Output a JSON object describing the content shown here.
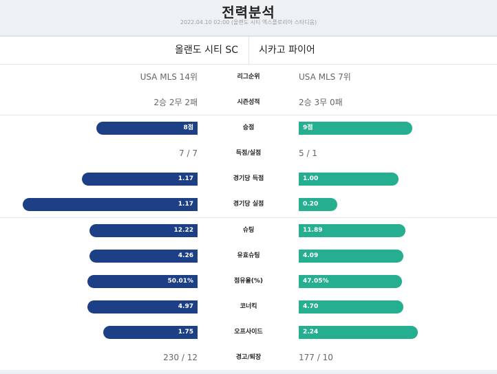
{
  "header": {
    "title": "전력분석",
    "subtitle": "2022.04.10 02:00 (올랜도 시티 엑스플로리아 스타디움)"
  },
  "teams": {
    "home": "올랜도 시티 SC",
    "away": "시카고 파이어"
  },
  "colors": {
    "home_bar": "#1c3f86",
    "away_bar": "#26ae90"
  },
  "info_rows": [
    {
      "label": "리그순위",
      "home": "USA MLS 14위",
      "away": "USA MLS 7위"
    },
    {
      "label": "시즌성적",
      "home": "2승 2무 2패",
      "away": "2승 3무 0패"
    }
  ],
  "stats_a": [
    {
      "label": "승점",
      "home": "8점",
      "away": "9점",
      "home_level": 0.58,
      "away_level": 0.65,
      "bar": true
    },
    {
      "label": "득점/실점",
      "home": "7 / 7",
      "away": "5 / 1",
      "bar": false
    },
    {
      "label": "경기당 득점",
      "home": "1.17",
      "away": "1.00",
      "home_level": 0.66,
      "away_level": 0.57,
      "bar": true
    },
    {
      "label": "경기당 실점",
      "home": "1.17",
      "away": "0.20",
      "home_level": 1.0,
      "away_level": 0.22,
      "bar": true
    }
  ],
  "stats_b": [
    {
      "label": "슈팅",
      "home": "12.22",
      "away": "11.89",
      "home_level": 0.62,
      "away_level": 0.61,
      "bar": true
    },
    {
      "label": "유효슈팅",
      "home": "4.26",
      "away": "4.09",
      "home_level": 0.62,
      "away_level": 0.6,
      "bar": true
    },
    {
      "label": "점유율(%)",
      "home": "50.01%",
      "away": "47.05%",
      "home_level": 0.63,
      "away_level": 0.59,
      "bar": true
    },
    {
      "label": "코너킥",
      "home": "4.97",
      "away": "4.70",
      "home_level": 0.63,
      "away_level": 0.6,
      "bar": true
    },
    {
      "label": "오프사이드",
      "home": "1.75",
      "away": "2.24",
      "home_level": 0.54,
      "away_level": 0.68,
      "bar": true
    },
    {
      "label": "경고/퇴장",
      "home": "230 / 12",
      "away": "177 / 10",
      "bar": false
    }
  ]
}
